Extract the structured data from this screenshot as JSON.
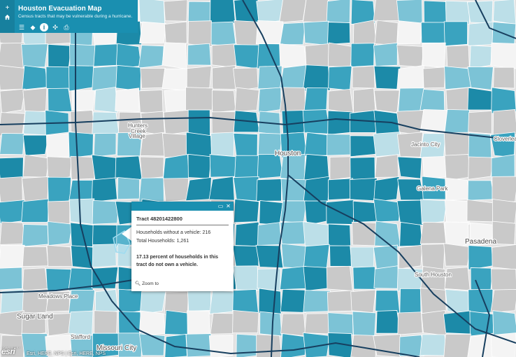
{
  "header": {
    "home_button_label": "+",
    "title": "Houston Evacuation Map",
    "subtitle": "Census tracts that may be vulnerable during a hurricane.",
    "tools": [
      {
        "icon": "legend-icon",
        "glyph": "☰"
      },
      {
        "icon": "layers-icon",
        "glyph": "◆"
      },
      {
        "icon": "info-icon",
        "glyph": "i"
      },
      {
        "icon": "share-icon",
        "glyph": "✣"
      },
      {
        "icon": "print-icon",
        "glyph": "⎙"
      }
    ]
  },
  "map": {
    "places": [
      {
        "name": "Hunters"
      },
      {
        "name": "Creek"
      },
      {
        "name": "Village"
      },
      {
        "name": "Houston"
      },
      {
        "name": "Jacinto City"
      },
      {
        "name": "Galena Park"
      },
      {
        "name": "Pasadena"
      },
      {
        "name": "South Houston"
      },
      {
        "name": "Meadows Place"
      },
      {
        "name": "Sugar Land"
      },
      {
        "name": "Stafford"
      },
      {
        "name": "Missouri City"
      },
      {
        "name": "Cloverleaf"
      }
    ],
    "colors": {
      "dark": "#1c8aa8",
      "medium": "#3aa3bf",
      "light": "#7cc3d6",
      "pale": "#bcdfe8",
      "gray": "#c9c9c9",
      "white": "#f4f4f4",
      "road": "#173f5f",
      "selected": "#9fdcf0"
    }
  },
  "popup": {
    "title": "Tract 48201422800",
    "households_without_vehicle": "Households without a vehicle: 216",
    "total_households": "Total Households: 1,261",
    "description": "17.13 percent of households in this tract do not own a vehicle.",
    "zoom_label": "Zoom to"
  },
  "attribution": {
    "powered_by": "POWERED BY",
    "logo": "esri",
    "text": "Esri, HERE, NPS | Esri, HERE, NPS"
  }
}
